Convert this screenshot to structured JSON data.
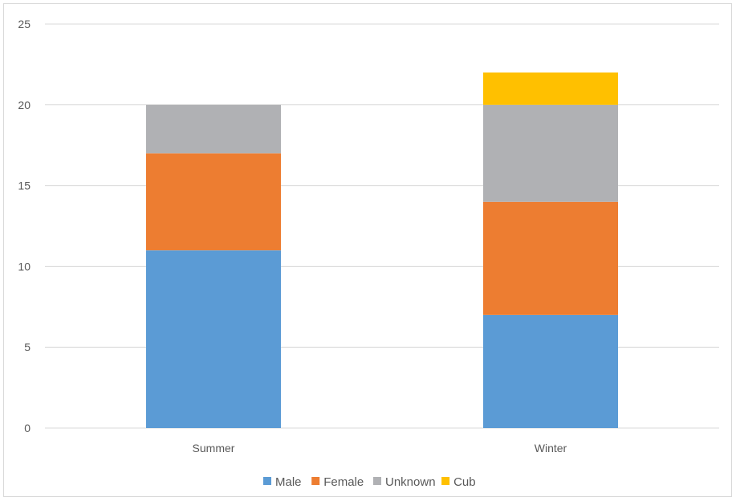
{
  "chart_data": {
    "type": "bar",
    "stacked": true,
    "categories": [
      "Summer",
      "Winter"
    ],
    "series": [
      {
        "name": "Male",
        "values": [
          11,
          7
        ],
        "color": "#5b9bd5"
      },
      {
        "name": "Female",
        "values": [
          6,
          7
        ],
        "color": "#ed7d31"
      },
      {
        "name": "Unknown",
        "values": [
          3,
          6
        ],
        "color": "#b0b1b4"
      },
      {
        "name": "Cub",
        "values": [
          0,
          2
        ],
        "color": "#ffc000"
      }
    ],
    "ylim": [
      0,
      25
    ],
    "yticks": [
      0,
      5,
      10,
      15,
      20,
      25
    ],
    "grid": true,
    "legend_position": "bottom"
  }
}
